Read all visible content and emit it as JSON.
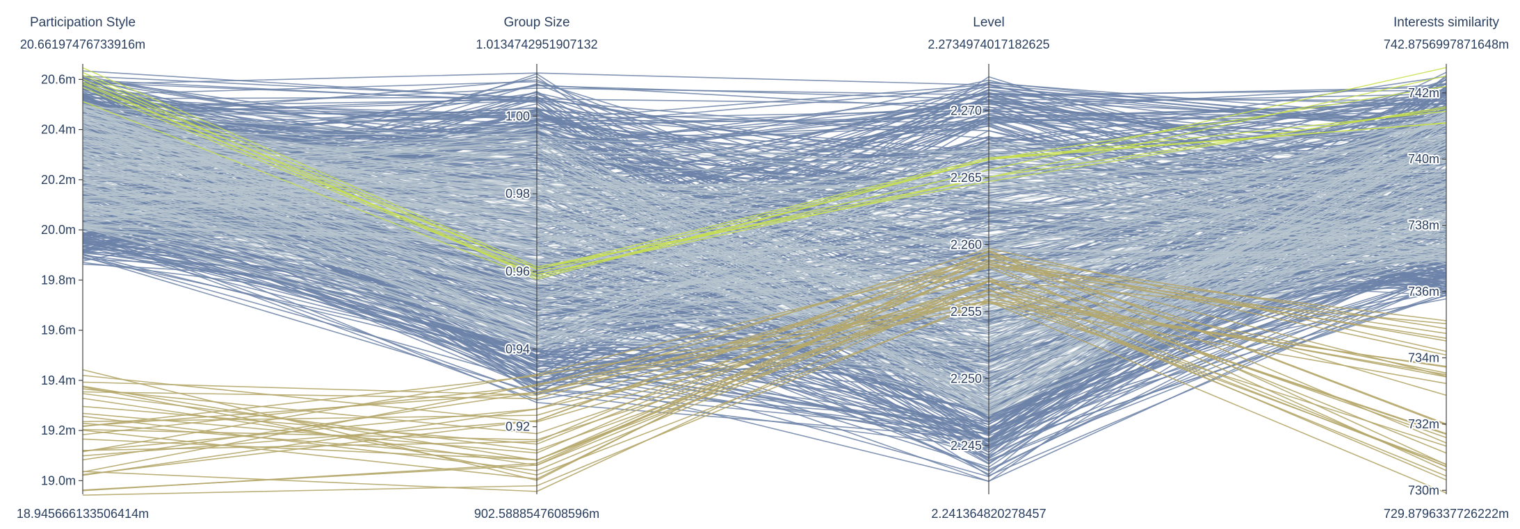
{
  "chart_data": {
    "type": "parallel_coordinates",
    "dimensions": [
      {
        "label": "Participation Style",
        "range": [
          0.018945666133506414,
          0.02066197476733916
        ],
        "range_labels": {
          "top": "20.66197476733916m",
          "bottom": "18.945666133506414m"
        },
        "ticks": [
          {
            "value": 0.019,
            "label": "19.0m"
          },
          {
            "value": 0.0192,
            "label": "19.2m"
          },
          {
            "value": 0.0194,
            "label": "19.4m"
          },
          {
            "value": 0.0196,
            "label": "19.6m"
          },
          {
            "value": 0.0198,
            "label": "19.8m"
          },
          {
            "value": 0.02,
            "label": "20.0m"
          },
          {
            "value": 0.0202,
            "label": "20.2m"
          },
          {
            "value": 0.0204,
            "label": "20.4m"
          },
          {
            "value": 0.0206,
            "label": "20.6m"
          }
        ],
        "tick_side": "left"
      },
      {
        "label": "Group Size",
        "range": [
          0.9025888547608596,
          1.0134742951907132
        ],
        "range_labels": {
          "top": "1.0134742951907132",
          "bottom": "902.5888547608596m"
        },
        "ticks": [
          {
            "value": 0.92,
            "label": "0.92"
          },
          {
            "value": 0.94,
            "label": "0.94"
          },
          {
            "value": 0.96,
            "label": "0.96"
          },
          {
            "value": 0.98,
            "label": "0.98"
          },
          {
            "value": 1.0,
            "label": "1.00"
          }
        ],
        "tick_side": "left"
      },
      {
        "label": "Level",
        "range": [
          2.241364820278457,
          2.2734974017182625
        ],
        "range_labels": {
          "top": "2.2734974017182625",
          "bottom": "2.241364820278457"
        },
        "ticks": [
          {
            "value": 2.245,
            "label": "2.245"
          },
          {
            "value": 2.25,
            "label": "2.250"
          },
          {
            "value": 2.255,
            "label": "2.255"
          },
          {
            "value": 2.26,
            "label": "2.260"
          },
          {
            "value": 2.265,
            "label": "2.265"
          },
          {
            "value": 2.27,
            "label": "2.270"
          }
        ],
        "tick_side": "left"
      },
      {
        "label": "Interests similarity",
        "range": [
          0.7298796337726222,
          0.7428756997871648
        ],
        "range_labels": {
          "top": "742.8756997871648m",
          "bottom": "729.8796337726222m"
        },
        "ticks": [
          {
            "value": 0.73,
            "label": "730m"
          },
          {
            "value": 0.732,
            "label": "732m"
          },
          {
            "value": 0.734,
            "label": "734m"
          },
          {
            "value": 0.736,
            "label": "736m"
          },
          {
            "value": 0.738,
            "label": "738m"
          },
          {
            "value": 0.74,
            "label": "740m"
          },
          {
            "value": 0.742,
            "label": "742m"
          }
        ],
        "tick_side": "left"
      }
    ],
    "line_groups": [
      {
        "color": "#6c82a8",
        "highlight_color": "#b8c6cf",
        "description_values": {
          "participation_style": [
            0.01985,
            0.02066
          ],
          "group_size": [
            0.924,
            1.0135
          ],
          "level": [
            2.2414,
            2.2735
          ],
          "interests_similarity": [
            0.7355,
            0.7428
          ]
        }
      },
      {
        "color": "#b5a76a",
        "description_values": {
          "participation_style": [
            0.01894,
            0.01945
          ],
          "group_size": [
            0.9026,
            0.9335
          ],
          "level": [
            2.2556,
            2.2598
          ],
          "interests_similarity": [
            0.7299,
            0.7352
          ]
        }
      },
      {
        "color": "#c8e04a",
        "description_values": {
          "participation_style": [
            0.0205,
            0.02065
          ],
          "group_size": [
            0.958,
            0.962
          ],
          "level": [
            2.2645,
            2.2665
          ],
          "interests_similarity": [
            0.741,
            0.7428
          ]
        }
      }
    ],
    "colors": {
      "axis": "#444444",
      "text": "#2a3f5f",
      "blue_lines": "#6c82a8",
      "highlight_lines": "#b8c6cf",
      "olive_lines": "#b5a76a",
      "lime_lines": "#c8e04a"
    }
  }
}
